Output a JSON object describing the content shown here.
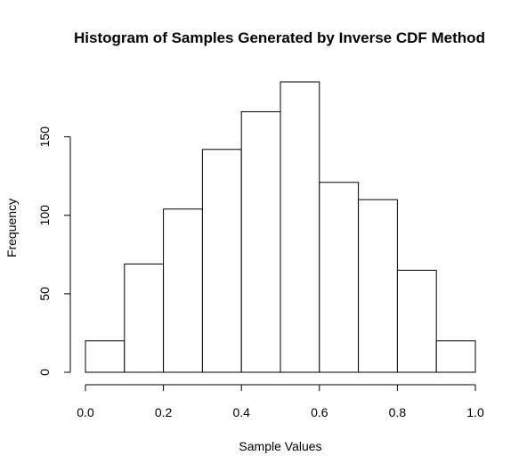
{
  "chart_data": {
    "type": "bar",
    "title": "Histogram of Samples Generated by Inverse CDF Method",
    "xlabel": "Sample Values",
    "ylabel": "Frequency",
    "bins": [
      {
        "start": 0.0,
        "end": 0.1,
        "count": 20
      },
      {
        "start": 0.1,
        "end": 0.2,
        "count": 69
      },
      {
        "start": 0.2,
        "end": 0.3,
        "count": 104
      },
      {
        "start": 0.3,
        "end": 0.4,
        "count": 142
      },
      {
        "start": 0.4,
        "end": 0.5,
        "count": 166
      },
      {
        "start": 0.5,
        "end": 0.6,
        "count": 185
      },
      {
        "start": 0.6,
        "end": 0.7,
        "count": 121
      },
      {
        "start": 0.7,
        "end": 0.8,
        "count": 110
      },
      {
        "start": 0.8,
        "end": 0.9,
        "count": 65
      },
      {
        "start": 0.9,
        "end": 1.0,
        "count": 20
      }
    ],
    "xlim": [
      0.0,
      1.0
    ],
    "ylim": [
      0,
      185
    ],
    "x_ticks": [
      "0.0",
      "0.2",
      "0.4",
      "0.6",
      "0.8",
      "1.0"
    ],
    "y_ticks": [
      "0",
      "50",
      "100",
      "150"
    ],
    "grid": false,
    "bar_fill": "#ffffff",
    "bar_stroke": "#000000"
  }
}
